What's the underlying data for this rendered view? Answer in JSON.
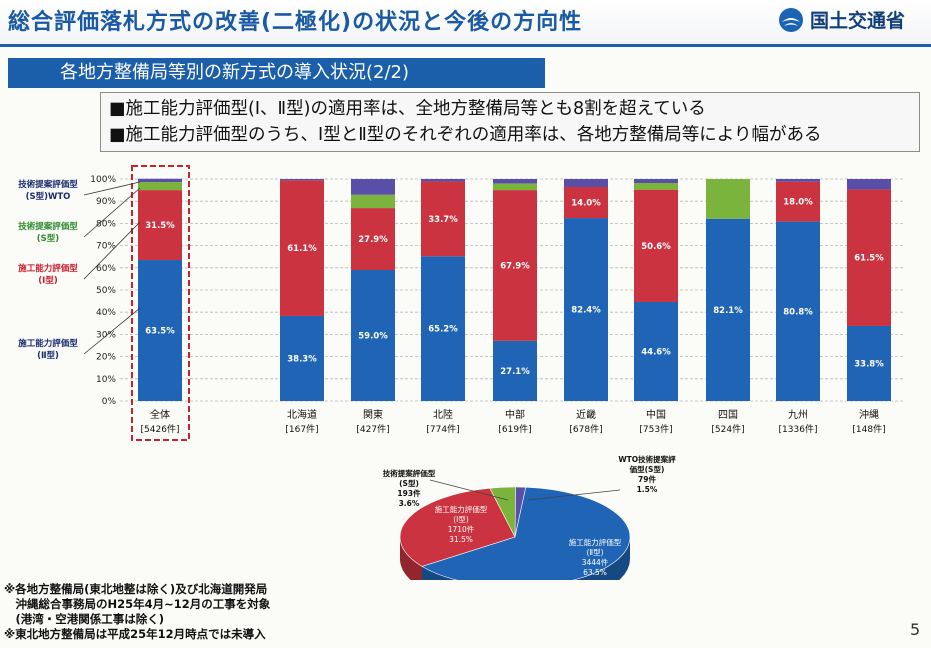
{
  "header": {
    "title": "総合評価落札方式の改善(二極化)の状況と今後の方向性",
    "logo_text": "国土交通省"
  },
  "subtitle": "各地方整備局等別の新方式の導入状況(2/2)",
  "summary": [
    "■施工能力評価型(Ⅰ、Ⅱ型)の適用率は、全地方整備局等とも8割を超えている",
    "■施工能力評価型のうち、Ⅰ型とⅡ型のそれぞれの適用率は、各地方整備局等により幅がある"
  ],
  "legend_labels": [
    {
      "lines": [
        "技術提案評価型",
        "(S型)WTO"
      ],
      "color": "#1a2a6e"
    },
    {
      "lines": [
        "技術提案評価型",
        "(S型)"
      ],
      "color": "#2e8b2e"
    },
    {
      "lines": [
        "施工能力評価型",
        "(Ⅰ型)"
      ],
      "color": "#c8202e"
    },
    {
      "lines": [
        "施工能力評価型",
        "(Ⅱ型)"
      ],
      "color": "#1a2a6e"
    }
  ],
  "colors": {
    "type2": "#1f64b5",
    "type1": "#cc3340",
    "s": "#7ab43c",
    "wto": "#5a4fa8",
    "highlight": "#c8202e"
  },
  "notes": [
    "※各地方整備局(東北地整は除く)及び北海道開発局",
    "　沖縄総合事務局のH25年4月~12月の工事を対象",
    "　(港湾・空港関係工事は除く)",
    "※東北地方整備局は平成25年12月時点では未導入"
  ],
  "page_number": "5",
  "chart_data": [
    {
      "type": "bar",
      "stacked": true,
      "y_ticks": [
        "0%",
        "10%",
        "20%",
        "30%",
        "40%",
        "50%",
        "60%",
        "70%",
        "80%",
        "90%",
        "100%"
      ],
      "ylim": [
        0,
        100
      ],
      "categories": [
        "全体",
        "北海道",
        "関東",
        "北陸",
        "中部",
        "近畿",
        "中国",
        "四国",
        "九州",
        "沖縄"
      ],
      "counts": [
        "[5426件]",
        "[167件]",
        "[427件]",
        "[774件]",
        "[619件]",
        "[678件]",
        "[753件]",
        "[524件]",
        "[1336件]",
        "[148件]"
      ],
      "series": [
        {
          "key": "type2",
          "values": [
            63.5,
            38.3,
            59.0,
            65.2,
            27.1,
            82.4,
            44.6,
            82.1,
            80.8,
            33.8
          ],
          "labels": [
            "63.5%",
            "38.3%",
            "59.0%",
            "65.2%",
            "27.1%",
            "82.4%",
            "44.6%",
            "82.1%",
            "80.8%",
            "33.8%"
          ]
        },
        {
          "key": "type1",
          "values": [
            31.5,
            61.1,
            27.9,
            33.7,
            67.9,
            14.0,
            50.6,
            0,
            18.0,
            61.5
          ],
          "labels": [
            "31.5%",
            "61.1%",
            "27.9%",
            "33.7%",
            "67.9%",
            "14.0%",
            "50.6%",
            "",
            "18.0%",
            "61.5%"
          ]
        },
        {
          "key": "s",
          "values": [
            3.6,
            0,
            6.0,
            0,
            3.0,
            0,
            3.0,
            17.9,
            0,
            0
          ],
          "labels": [
            "",
            "",
            "",
            "",
            "",
            "",
            "",
            "",
            "",
            ""
          ]
        },
        {
          "key": "wto",
          "values": [
            1.5,
            0.6,
            7.1,
            1.1,
            2.0,
            3.6,
            1.8,
            0,
            1.2,
            4.7
          ],
          "labels": [
            "",
            "",
            "",
            "",
            "",
            "",
            "",
            "",
            "",
            ""
          ]
        }
      ]
    },
    {
      "type": "pie",
      "slices": [
        {
          "key": "wto",
          "lines": [
            "WTO技術提案評",
            "価型(S型)",
            "79件",
            "1.5%"
          ],
          "value": 1.5
        },
        {
          "key": "type2",
          "lines": [
            "施工能力評価型",
            "(Ⅱ型)",
            "3444件",
            "63.5%"
          ],
          "value": 63.5
        },
        {
          "key": "type1",
          "lines": [
            "施工能力評価型",
            "(Ⅰ型)",
            "1710件",
            "31.5%"
          ],
          "value": 31.5
        },
        {
          "key": "s",
          "lines": [
            "技術提案評価型",
            "(S型)",
            "193件",
            "3.6%"
          ],
          "value": 3.6
        }
      ]
    }
  ]
}
